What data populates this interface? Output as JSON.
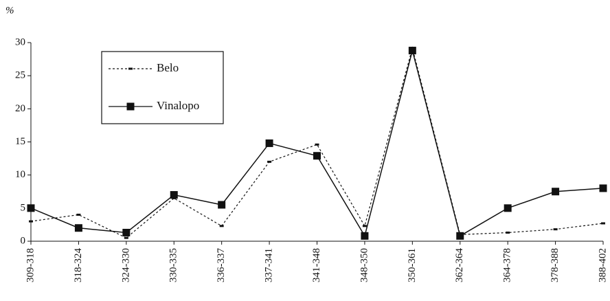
{
  "chart_data": {
    "type": "line",
    "y_label": "%",
    "categories": [
      "309-318",
      "318-324",
      "324-330",
      "330-335",
      "336-337",
      "337-341",
      "341-348",
      "348-350",
      "350-361",
      "362-364",
      "364-378",
      "378-388",
      "388-402"
    ],
    "series": [
      {
        "name": "Belo",
        "color": "#111111",
        "style": "dashed",
        "values": [
          3,
          4,
          0.5,
          6.5,
          2.3,
          12,
          14.6,
          2.3,
          29.2,
          1,
          1.3,
          1.8,
          2.7
        ]
      },
      {
        "name": "Vinalopo",
        "color": "#111111",
        "style": "solid",
        "values": [
          5,
          2,
          1.3,
          7,
          5.5,
          14.8,
          12.9,
          0.8,
          28.8,
          0.8,
          5,
          7.5,
          8
        ]
      }
    ],
    "ylim": [
      0,
      30
    ],
    "yticks": [
      0,
      5,
      10,
      15,
      20,
      25,
      30
    ],
    "grid": false
  }
}
